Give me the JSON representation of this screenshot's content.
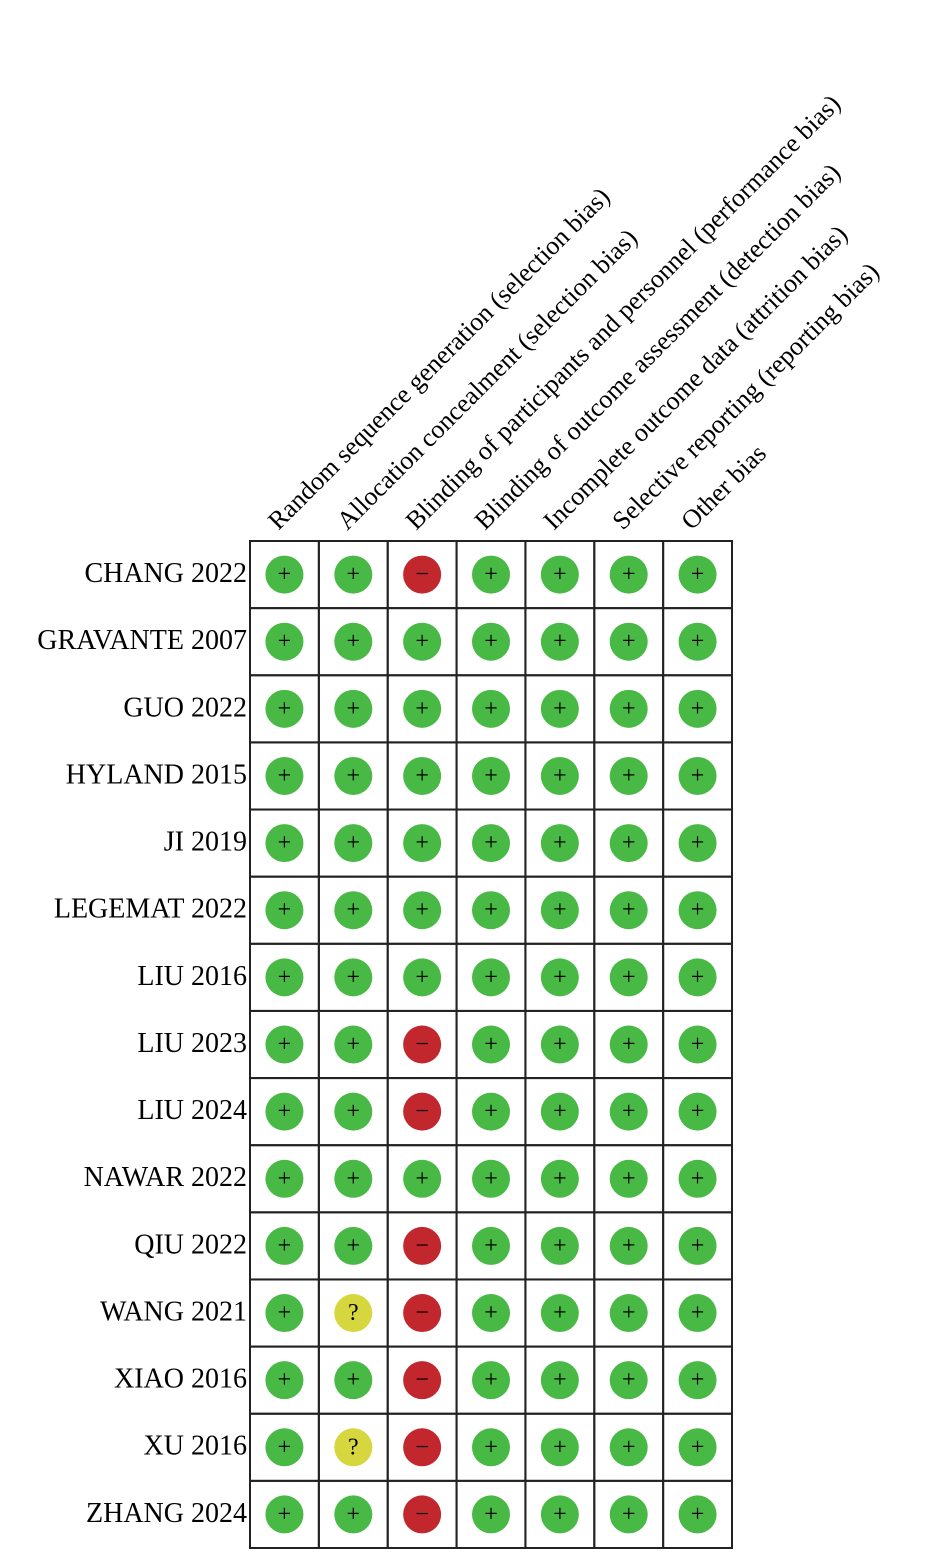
{
  "table": {
    "columns": [
      "Random sequence generation (selection bias)",
      "Allocation concealment (selection bias)",
      "Blinding of participants and personnel (performance bias)",
      "Blinding of outcome assessment (detection bias)",
      "Incomplete outcome data (attrition bias)",
      "Selective reporting (reporting bias)",
      "Other bias"
    ],
    "rows": [
      {
        "study": "CHANG 2022",
        "judgments": [
          "+",
          "+",
          "−",
          "+",
          "+",
          "+",
          "+"
        ]
      },
      {
        "study": "GRAVANTE 2007",
        "judgments": [
          "+",
          "+",
          "+",
          "+",
          "+",
          "+",
          "+"
        ]
      },
      {
        "study": "GUO 2022",
        "judgments": [
          "+",
          "+",
          "+",
          "+",
          "+",
          "+",
          "+"
        ]
      },
      {
        "study": "HYLAND 2015",
        "judgments": [
          "+",
          "+",
          "+",
          "+",
          "+",
          "+",
          "+"
        ]
      },
      {
        "study": "JI 2019",
        "judgments": [
          "+",
          "+",
          "+",
          "+",
          "+",
          "+",
          "+"
        ]
      },
      {
        "study": "LEGEMAT 2022",
        "judgments": [
          "+",
          "+",
          "+",
          "+",
          "+",
          "+",
          "+"
        ]
      },
      {
        "study": "LIU 2016",
        "judgments": [
          "+",
          "+",
          "+",
          "+",
          "+",
          "+",
          "+"
        ]
      },
      {
        "study": "LIU 2023",
        "judgments": [
          "+",
          "+",
          "−",
          "+",
          "+",
          "+",
          "+"
        ]
      },
      {
        "study": "LIU 2024",
        "judgments": [
          "+",
          "+",
          "−",
          "+",
          "+",
          "+",
          "+"
        ]
      },
      {
        "study": "NAWAR 2022",
        "judgments": [
          "+",
          "+",
          "+",
          "+",
          "+",
          "+",
          "+"
        ]
      },
      {
        "study": "QIU 2022",
        "judgments": [
          "+",
          "+",
          "−",
          "+",
          "+",
          "+",
          "+"
        ]
      },
      {
        "study": "WANG 2021",
        "judgments": [
          "+",
          "?",
          "−",
          "+",
          "+",
          "+",
          "+"
        ]
      },
      {
        "study": "XIAO 2016",
        "judgments": [
          "+",
          "+",
          "−",
          "+",
          "+",
          "+",
          "+"
        ]
      },
      {
        "study": "XU 2016",
        "judgments": [
          "+",
          "?",
          "−",
          "+",
          "+",
          "+",
          "+"
        ]
      },
      {
        "study": "ZHANG 2024",
        "judgments": [
          "+",
          "+",
          "−",
          "+",
          "+",
          "+",
          "+"
        ]
      }
    ],
    "colors": {
      "+": "#48b944",
      "?": "#d6d63e",
      "−": "#c1272d"
    }
  }
}
